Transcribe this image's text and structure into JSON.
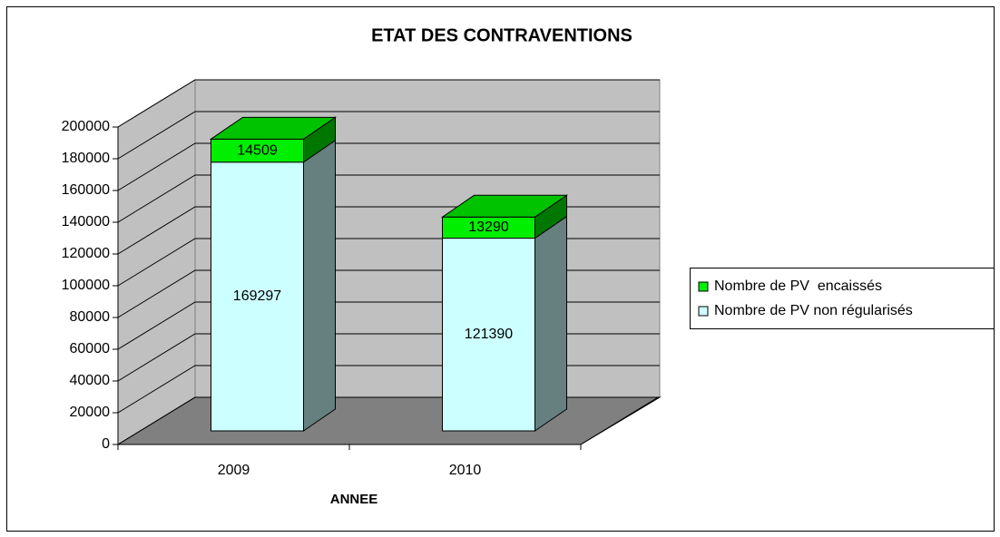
{
  "chart_data": {
    "type": "bar3d_stacked",
    "title": "ETAT DES CONTRAVENTIONS",
    "x_label": "ANNEE",
    "categories": [
      "2009",
      "2010"
    ],
    "series": [
      {
        "name": "Nombre de PV non régularisés",
        "color": "#ccffff",
        "values": [
          169297,
          121390
        ]
      },
      {
        "name": "Nombre de PV  encaissés",
        "color": "#00ee00",
        "values": [
          14509,
          13290
        ]
      }
    ],
    "ylim": [
      0,
      200000
    ],
    "yticks": [
      0,
      20000,
      40000,
      60000,
      80000,
      100000,
      120000,
      140000,
      160000,
      180000,
      200000
    ],
    "grid": true,
    "legend": "right"
  }
}
